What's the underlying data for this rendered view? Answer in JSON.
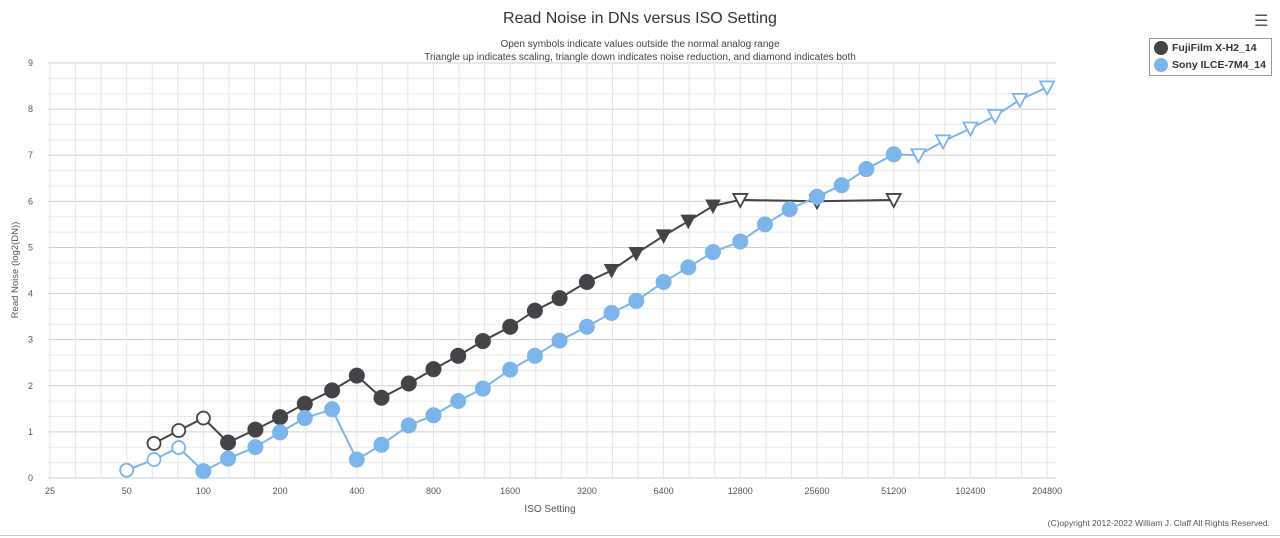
{
  "chart_data": {
    "type": "line",
    "title": "Read Noise in DNs versus ISO Setting",
    "subtitle_lines": [
      "Open symbols indicate values outside the normal analog range",
      "Triangle up indicates scaling, triangle down indicates noise reduction, and diamond indicates both"
    ],
    "xlabel": "ISO Setting",
    "ylabel": "Read Noise (log2(DN))",
    "x_scale": "log2",
    "xlim": [
      25,
      204800
    ],
    "ylim": [
      0,
      9
    ],
    "x_ticks": [
      "25",
      "50",
      "100",
      "200",
      "400",
      "800",
      "1600",
      "3200",
      "6400",
      "12800",
      "25600",
      "51200",
      "102400",
      "204800"
    ],
    "y_ticks": [
      "0",
      "1",
      "2",
      "3",
      "4",
      "5",
      "6",
      "7",
      "8",
      "9"
    ],
    "grid": true,
    "legend_position": "top-right",
    "series": [
      {
        "name": "FujiFilm X-H2_14",
        "color": "#434348",
        "points": [
          {
            "iso": 64,
            "v": 0.75,
            "sym": "open-circle"
          },
          {
            "iso": 80,
            "v": 1.03,
            "sym": "open-circle"
          },
          {
            "iso": 100,
            "v": 1.3,
            "sym": "open-circle"
          },
          {
            "iso": 125,
            "v": 0.77,
            "sym": "circle"
          },
          {
            "iso": 160,
            "v": 1.05,
            "sym": "circle"
          },
          {
            "iso": 200,
            "v": 1.32,
            "sym": "circle"
          },
          {
            "iso": 250,
            "v": 1.61,
            "sym": "circle"
          },
          {
            "iso": 320,
            "v": 1.9,
            "sym": "circle"
          },
          {
            "iso": 400,
            "v": 2.22,
            "sym": "circle"
          },
          {
            "iso": 500,
            "v": 1.74,
            "sym": "circle"
          },
          {
            "iso": 640,
            "v": 2.05,
            "sym": "circle"
          },
          {
            "iso": 800,
            "v": 2.36,
            "sym": "circle"
          },
          {
            "iso": 1000,
            "v": 2.65,
            "sym": "circle"
          },
          {
            "iso": 1250,
            "v": 2.97,
            "sym": "circle"
          },
          {
            "iso": 1600,
            "v": 3.28,
            "sym": "circle"
          },
          {
            "iso": 2000,
            "v": 3.63,
            "sym": "circle"
          },
          {
            "iso": 2500,
            "v": 3.9,
            "sym": "circle"
          },
          {
            "iso": 3200,
            "v": 4.25,
            "sym": "circle"
          },
          {
            "iso": 4000,
            "v": 4.5,
            "sym": "tri-down"
          },
          {
            "iso": 5000,
            "v": 4.87,
            "sym": "tri-down"
          },
          {
            "iso": 6400,
            "v": 5.25,
            "sym": "tri-down"
          },
          {
            "iso": 8000,
            "v": 5.57,
            "sym": "tri-down"
          },
          {
            "iso": 10000,
            "v": 5.9,
            "sym": "tri-down"
          },
          {
            "iso": 12800,
            "v": 6.03,
            "sym": "open-tri-down"
          },
          {
            "iso": 25600,
            "v": 6.0,
            "sym": "open-tri-down"
          },
          {
            "iso": 51200,
            "v": 6.03,
            "sym": "open-tri-down"
          }
        ]
      },
      {
        "name": "Sony ILCE-7M4_14",
        "color": "#7cb5ec",
        "points": [
          {
            "iso": 50,
            "v": 0.17,
            "sym": "open-circle"
          },
          {
            "iso": 64,
            "v": 0.4,
            "sym": "open-circle"
          },
          {
            "iso": 80,
            "v": 0.66,
            "sym": "open-circle"
          },
          {
            "iso": 100,
            "v": 0.15,
            "sym": "circle"
          },
          {
            "iso": 125,
            "v": 0.42,
            "sym": "circle"
          },
          {
            "iso": 160,
            "v": 0.67,
            "sym": "circle"
          },
          {
            "iso": 200,
            "v": 0.99,
            "sym": "circle"
          },
          {
            "iso": 250,
            "v": 1.3,
            "sym": "circle"
          },
          {
            "iso": 320,
            "v": 1.49,
            "sym": "circle"
          },
          {
            "iso": 400,
            "v": 0.4,
            "sym": "circle"
          },
          {
            "iso": 500,
            "v": 0.72,
            "sym": "circle"
          },
          {
            "iso": 640,
            "v": 1.14,
            "sym": "circle"
          },
          {
            "iso": 800,
            "v": 1.36,
            "sym": "circle"
          },
          {
            "iso": 1000,
            "v": 1.67,
            "sym": "circle"
          },
          {
            "iso": 1250,
            "v": 1.94,
            "sym": "circle"
          },
          {
            "iso": 1600,
            "v": 2.35,
            "sym": "circle"
          },
          {
            "iso": 2000,
            "v": 2.65,
            "sym": "circle"
          },
          {
            "iso": 2500,
            "v": 2.98,
            "sym": "circle"
          },
          {
            "iso": 3200,
            "v": 3.28,
            "sym": "circle"
          },
          {
            "iso": 4000,
            "v": 3.58,
            "sym": "circle"
          },
          {
            "iso": 5000,
            "v": 3.84,
            "sym": "circle"
          },
          {
            "iso": 6400,
            "v": 4.25,
            "sym": "circle"
          },
          {
            "iso": 8000,
            "v": 4.57,
            "sym": "circle"
          },
          {
            "iso": 10000,
            "v": 4.9,
            "sym": "circle"
          },
          {
            "iso": 12800,
            "v": 5.13,
            "sym": "circle"
          },
          {
            "iso": 16000,
            "v": 5.5,
            "sym": "circle"
          },
          {
            "iso": 20000,
            "v": 5.83,
            "sym": "circle"
          },
          {
            "iso": 25600,
            "v": 6.1,
            "sym": "circle"
          },
          {
            "iso": 32000,
            "v": 6.35,
            "sym": "circle"
          },
          {
            "iso": 40000,
            "v": 6.7,
            "sym": "circle"
          },
          {
            "iso": 51200,
            "v": 7.02,
            "sym": "circle"
          },
          {
            "iso": 64000,
            "v": 7.0,
            "sym": "open-tri-down"
          },
          {
            "iso": 80000,
            "v": 7.3,
            "sym": "open-tri-down"
          },
          {
            "iso": 102400,
            "v": 7.58,
            "sym": "open-tri-down"
          },
          {
            "iso": 128000,
            "v": 7.85,
            "sym": "open-tri-down"
          },
          {
            "iso": 160000,
            "v": 8.2,
            "sym": "open-tri-down"
          },
          {
            "iso": 204800,
            "v": 8.47,
            "sym": "open-tri-down"
          }
        ]
      }
    ]
  },
  "copyright": "(C)opyright 2012-2022 William J. Claff All Rights Reserved."
}
